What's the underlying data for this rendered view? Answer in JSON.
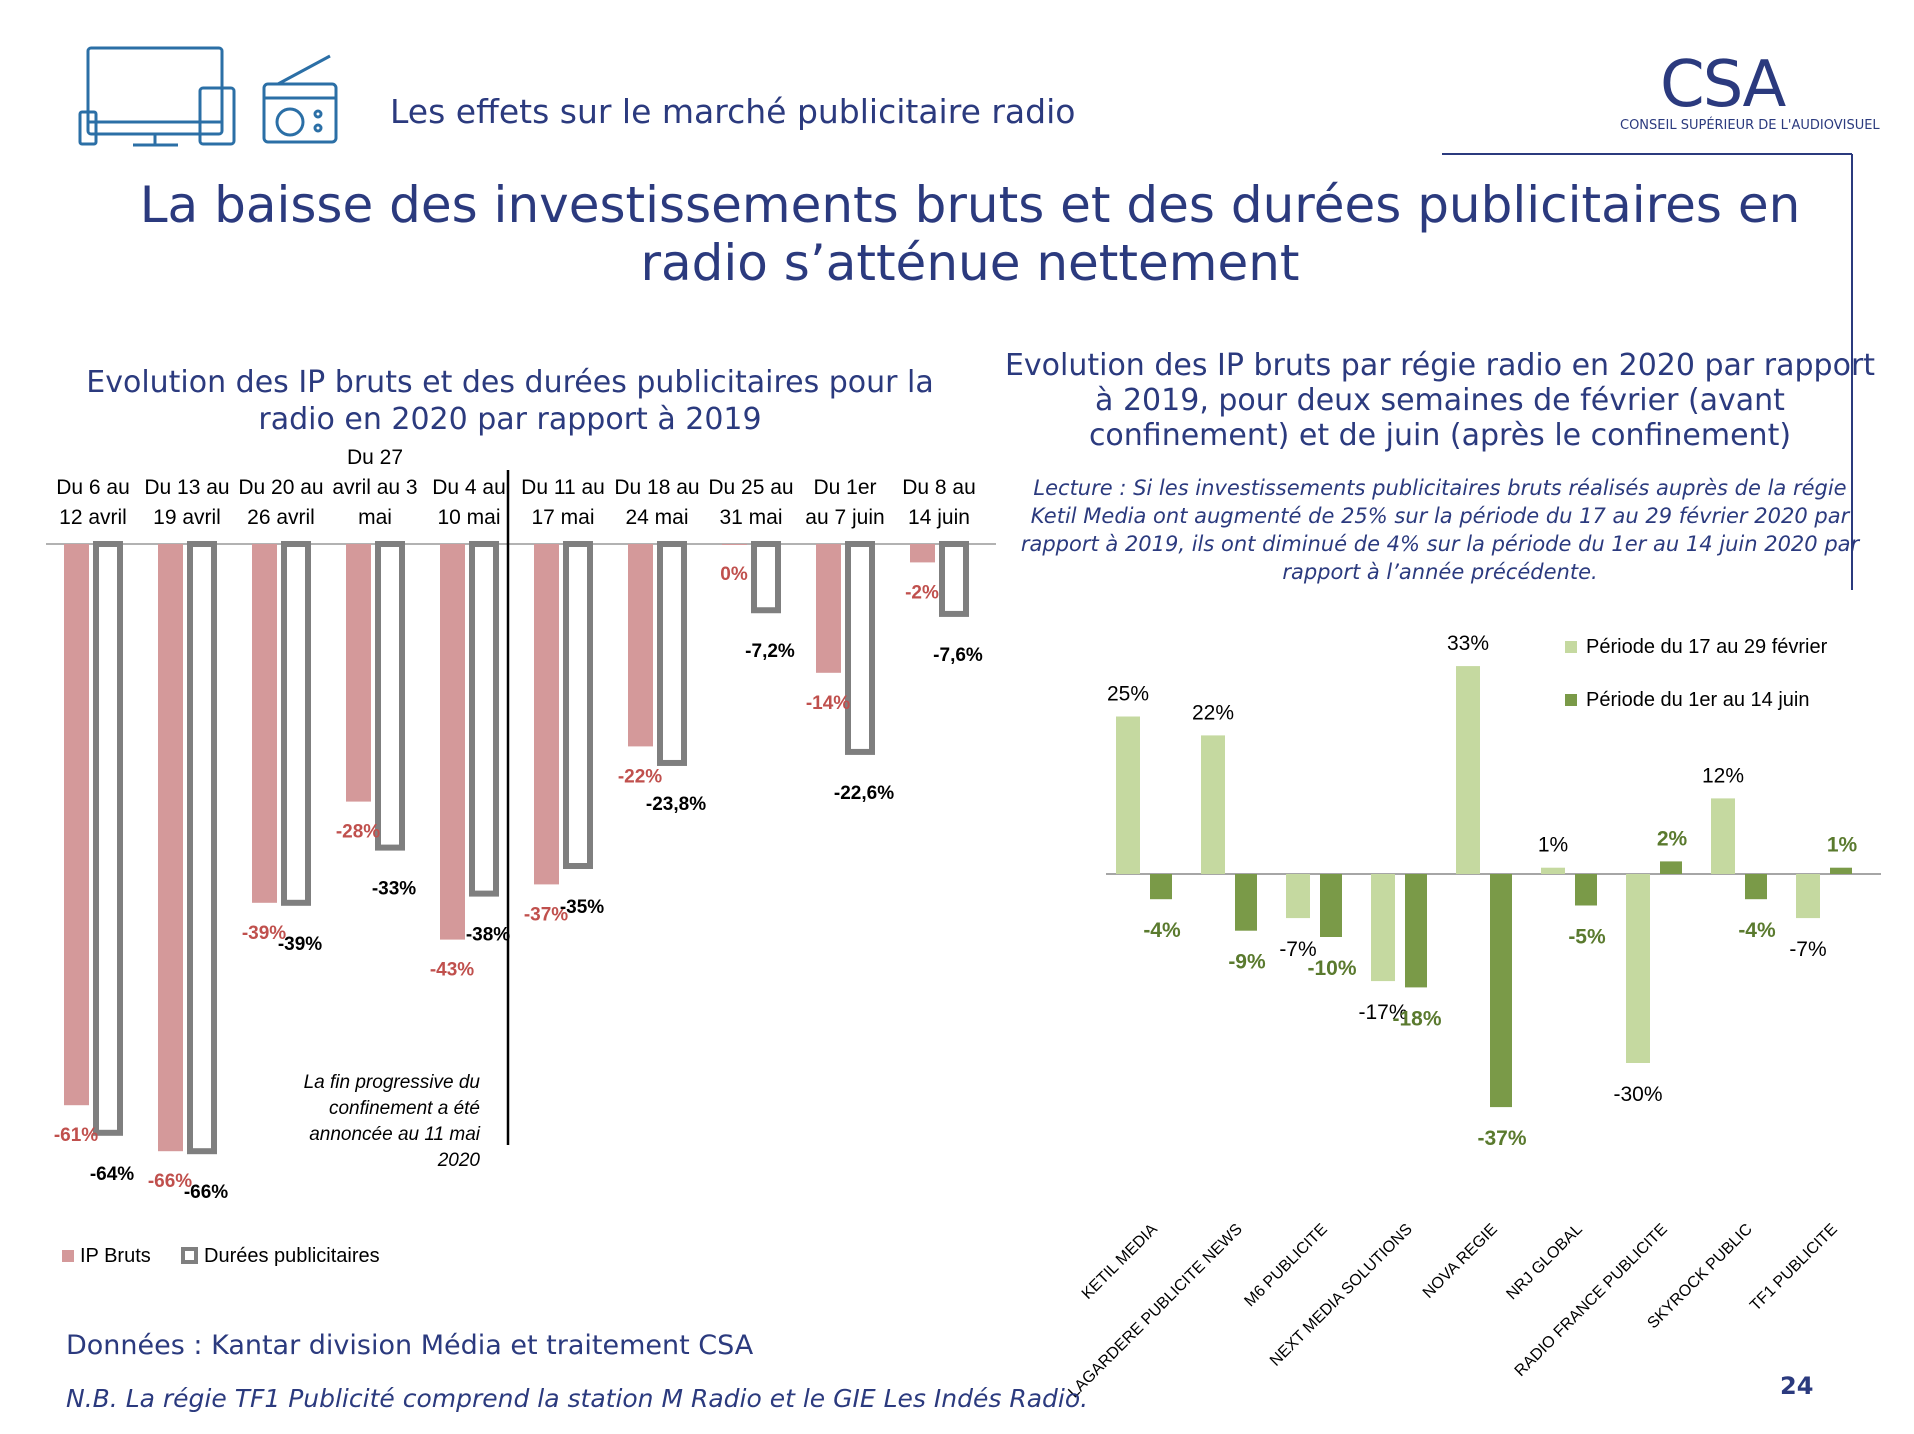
{
  "header": {
    "subtitle": "Les effets sur le marché publicitaire radio",
    "logo_text": "CSA",
    "logo_subtitle": "CONSEIL SUPÉRIEUR DE L'AUDIOVISUEL",
    "icons": [
      "monitor-icon",
      "tablet-icon",
      "phone-icon",
      "radio-icon"
    ]
  },
  "main_title": "La baisse des investissements bruts et des durées publicitaires en radio s’atténue nettement",
  "left_panel": {
    "title": "Evolution des IP bruts et des durées publicitaires pour la radio en 2020 par rapport à 2019"
  },
  "right_panel": {
    "title": "Evolution des IP bruts par régie radio en 2020 par rapport à 2019, pour deux semaines de février (avant confinement) et de juin (après le confinement)",
    "note": "Lecture : Si les investissements publicitaires bruts réalisés auprès de la régie Ketil Media ont augmenté de 25% sur la période du 17 au 29 février 2020 par rapport à 2019, ils ont diminué de 4% sur la période du 1er au 14 juin 2020 par rapport à l’année précédente."
  },
  "footer": {
    "source": "Données : Kantar division Média et traitement CSA",
    "note": "N.B. La régie TF1 Publicité comprend la station M Radio et le GIE Les Indés Radio.",
    "page_number": "24"
  },
  "chart_data": [
    {
      "type": "bar",
      "categories": [
        [
          "Du 6 au",
          "12 avril"
        ],
        [
          "Du 13 au",
          "19 avril"
        ],
        [
          "Du 20 au",
          "26 avril"
        ],
        [
          "Du 27",
          "avril au 3",
          "mai"
        ],
        [
          "Du 4 au",
          "10 mai"
        ],
        [
          "Du 11 au",
          "17 mai"
        ],
        [
          "Du 18 au",
          "24 mai"
        ],
        [
          "Du 25 au",
          "31 mai"
        ],
        [
          "Du 1er",
          "au 7 juin"
        ],
        [
          "Du 8 au",
          "14 juin"
        ]
      ],
      "series": [
        {
          "name": "IP Bruts",
          "values": [
            -61,
            -66,
            -39,
            -28,
            -43,
            -37,
            -22,
            0,
            -14,
            -2
          ],
          "labels": [
            "-61%",
            "-66%",
            "-39%",
            "-28%",
            "-43%",
            "-37%",
            "-22%",
            "0%",
            "-14%",
            "-2%"
          ],
          "color": "#d4999a",
          "label_color": "#c0504d"
        },
        {
          "name": "Durées publicitaires",
          "values": [
            -64,
            -66,
            -39,
            -33,
            -38,
            -35,
            -23.8,
            -7.2,
            -22.6,
            -7.6
          ],
          "labels": [
            "-64%",
            "-66%",
            "-39%",
            "-33%",
            "-38%",
            "-35%",
            "-23,8%",
            "-7,2%",
            "-22,6%",
            "-7,6%"
          ],
          "color": "#7f7f7f",
          "label_color": "#000000"
        }
      ],
      "annotation": "La fin progressive du confinement a été annoncée au 11 mai 2020",
      "legend_position": "bottom-left",
      "grid": false
    },
    {
      "type": "bar",
      "categories": [
        "KETIL MEDIA",
        "LAGARDERE PUBLICITE NEWS",
        "M6 PUBLICITE",
        "NEXT MEDIA SOLUTIONS",
        "NOVA REGIE",
        "NRJ GLOBAL",
        "RADIO FRANCE PUBLICITE",
        "SKYROCK PUBLIC",
        "TF1 PUBLICITE"
      ],
      "series": [
        {
          "name": "Période du 17 au 29 février",
          "values": [
            25,
            22,
            -7,
            -17,
            33,
            1,
            -30,
            12,
            -7
          ],
          "labels": [
            "25%",
            "22%",
            "-7%",
            "-17%",
            "33%",
            "1%",
            "-30%",
            "12%",
            "-7%"
          ],
          "color": "#c5d9a0",
          "label_color": "#000000"
        },
        {
          "name": "Période du 1er au 14 juin",
          "values": [
            -4,
            -9,
            -10,
            -18,
            -37,
            -5,
            2,
            -4,
            1
          ],
          "labels": [
            "-4%",
            "-9%",
            "-10%",
            "-18%",
            "-37%",
            "-5%",
            "2%",
            "-4%",
            "1%"
          ],
          "color": "#7a9a48",
          "label_color": "#5a7a2e"
        }
      ],
      "legend_position": "top-right",
      "grid": false
    }
  ]
}
